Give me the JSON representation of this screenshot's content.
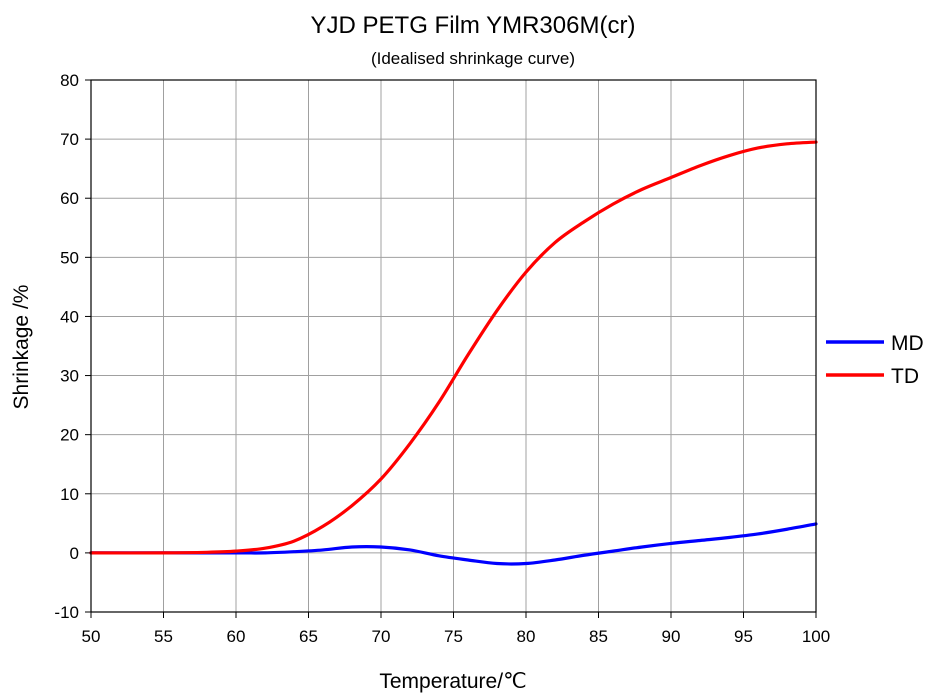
{
  "chart_data": {
    "type": "line",
    "title": "YJD PETG Film YMR306M(cr)",
    "subtitle": "(Idealised shrinkage curve)",
    "xlabel": "Temperature/℃",
    "ylabel": "Shrinkage /%",
    "xlim": [
      50,
      100
    ],
    "ylim": [
      -10,
      80
    ],
    "xticks": [
      50,
      55,
      60,
      65,
      70,
      75,
      80,
      85,
      90,
      95,
      100
    ],
    "yticks": [
      -10,
      0,
      10,
      20,
      30,
      40,
      50,
      60,
      70,
      80
    ],
    "grid": true,
    "legend_position": "right",
    "series": [
      {
        "name": "MD",
        "color": "#0000ff",
        "x": [
          50,
          55,
          60,
          62,
          64,
          66,
          68,
          70,
          72,
          74,
          76,
          78,
          80,
          82,
          84,
          86,
          88,
          90,
          92,
          94,
          96,
          98,
          100
        ],
        "y": [
          0,
          0,
          0,
          0,
          0.2,
          0.5,
          1.0,
          1.0,
          0.5,
          -0.5,
          -1.2,
          -1.8,
          -1.8,
          -1.2,
          -0.4,
          0.3,
          1.0,
          1.6,
          2.1,
          2.6,
          3.2,
          4.0,
          4.9
        ]
      },
      {
        "name": "TD",
        "color": "#ff0000",
        "x": [
          50,
          55,
          58,
          60,
          62,
          64,
          66,
          68,
          70,
          72,
          74,
          76,
          78,
          80,
          82,
          84,
          86,
          88,
          90,
          92,
          94,
          96,
          98,
          100
        ],
        "y": [
          0,
          0,
          0.1,
          0.3,
          0.8,
          2.0,
          4.5,
          8.0,
          12.5,
          18.5,
          25.5,
          33.5,
          41.0,
          47.5,
          52.5,
          56.0,
          59.0,
          61.5,
          63.5,
          65.5,
          67.2,
          68.5,
          69.2,
          69.5
        ]
      }
    ]
  }
}
